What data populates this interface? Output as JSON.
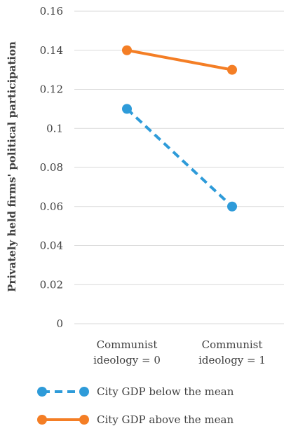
{
  "chart_data": {
    "type": "line",
    "title": "",
    "xlabel": "",
    "ylabel": "Privately held firms' political participation",
    "categories": [
      [
        "Communist",
        "ideology = 0"
      ],
      [
        "Communist",
        "ideology = 1"
      ]
    ],
    "y_ticks": [
      "0",
      "0.02",
      "0.04",
      "0.06",
      "0.08",
      "0.1",
      "0.12",
      "0.14",
      "0.16"
    ],
    "ylim": [
      0,
      0.16
    ],
    "grid": true,
    "legend_position": "bottom",
    "series": [
      {
        "name": "City GDP below the mean",
        "values": [
          0.11,
          0.06
        ],
        "color": "#2E9BD9",
        "line_style": "dashed"
      },
      {
        "name": "City GDP above the mean",
        "values": [
          0.14,
          0.13
        ],
        "color": "#F47E25",
        "line_style": "solid"
      }
    ]
  }
}
